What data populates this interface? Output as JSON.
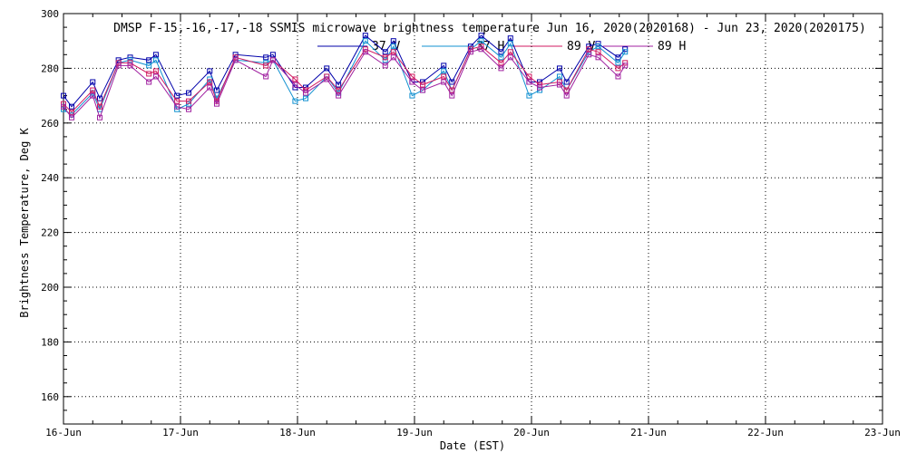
{
  "chart_data": {
    "type": "line",
    "title": "DMSP F-15,-16,-17,-18 SSMIS microwave brightness temperature Jun 16, 2020(2020168) - Jun 23, 2020(2020175)",
    "xlabel": "Date (EST)",
    "ylabel": "Brightness Temperature, Deg K",
    "xlim": [
      16,
      23
    ],
    "ylim": [
      150,
      300
    ],
    "x_ticks": [
      16,
      17,
      18,
      19,
      20,
      21,
      22,
      23
    ],
    "x_tick_labels": [
      "16-Jun",
      "17-Jun",
      "18-Jun",
      "19-Jun",
      "20-Jun",
      "21-Jun",
      "22-Jun",
      "23-Jun"
    ],
    "y_ticks": [
      160,
      180,
      200,
      220,
      240,
      260,
      280,
      300
    ],
    "y_tick_labels": [
      "160",
      "180",
      "200",
      "220",
      "240",
      "260",
      "280",
      "300"
    ],
    "grid": true,
    "legend_position": "top",
    "x": [
      16.0,
      16.07,
      16.25,
      16.31,
      16.47,
      16.57,
      16.73,
      16.79,
      16.97,
      17.07,
      17.25,
      17.31,
      17.47,
      17.73,
      17.79,
      17.98,
      18.07,
      18.25,
      18.35,
      18.58,
      18.75,
      18.82,
      18.98,
      19.07,
      19.25,
      19.32,
      19.48,
      19.57,
      19.74,
      19.82,
      19.98,
      20.07,
      20.24,
      20.3,
      20.49,
      20.57,
      20.74,
      20.8
    ],
    "series": [
      {
        "name": "37 V",
        "color": "#0000aa",
        "values": [
          270,
          266,
          275,
          269,
          283,
          284,
          283,
          285,
          270,
          271,
          279,
          272,
          285,
          284,
          285,
          273,
          273,
          280,
          274,
          292,
          286,
          290,
          275,
          275,
          281,
          275,
          288,
          292,
          286,
          291,
          275,
          275,
          280,
          275,
          288,
          289,
          284,
          287
        ]
      },
      {
        "name": "37 H",
        "color": "#1090d0",
        "values": [
          265,
          263,
          271,
          265,
          282,
          283,
          281,
          283,
          265,
          267,
          276,
          269,
          283,
          282,
          283,
          268,
          269,
          277,
          271,
          290,
          283,
          288,
          270,
          272,
          279,
          272,
          287,
          290,
          284,
          289,
          270,
          272,
          277,
          272,
          286,
          288,
          282,
          286
        ]
      },
      {
        "name": "89 V",
        "color": "#d01860",
        "values": [
          267,
          264,
          272,
          266,
          282,
          282,
          278,
          279,
          268,
          268,
          275,
          268,
          284,
          281,
          283,
          276,
          272,
          277,
          272,
          287,
          284,
          286,
          277,
          274,
          277,
          272,
          287,
          288,
          282,
          286,
          277,
          274,
          275,
          272,
          287,
          286,
          280,
          282
        ]
      },
      {
        "name": "89 H",
        "color": "#a020a0",
        "values": [
          266,
          262,
          270,
          262,
          281,
          281,
          275,
          277,
          266,
          265,
          273,
          267,
          283,
          277,
          283,
          274,
          271,
          276,
          270,
          286,
          281,
          284,
          275,
          272,
          275,
          270,
          286,
          287,
          280,
          284,
          275,
          273,
          274,
          270,
          285,
          284,
          277,
          281
        ]
      }
    ]
  }
}
